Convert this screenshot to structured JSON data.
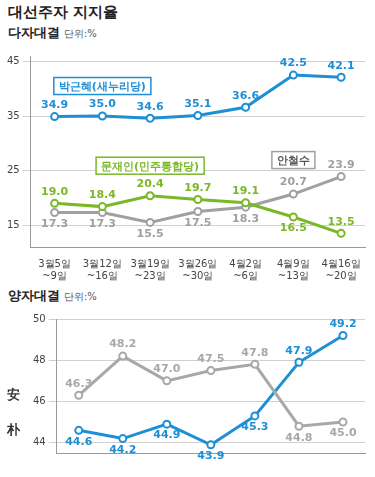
{
  "title": "대선주자 지지율",
  "chart_data": [
    {
      "type": "line",
      "title": "다자대결",
      "subtitle": "단위:%",
      "categories": [
        "3월5일~9일",
        "3월12일~16일",
        "3월19일~23일",
        "3월26일~30일",
        "4월2일~6일",
        "4월9일~13일",
        "4월16일~20일"
      ],
      "series": [
        {
          "name": "박근혜(새누리당)",
          "color": "#1e8fd5",
          "marker": "circle",
          "values": [
            34.9,
            35.0,
            34.6,
            35.1,
            36.6,
            42.5,
            42.1
          ],
          "value_labels": [
            "34.9",
            "35.0",
            "34.6",
            "35.1",
            "36.6",
            "42.5",
            "42.1"
          ]
        },
        {
          "name": "문재인(민주통합당)",
          "color": "#7ab827",
          "marker": "circle",
          "values": [
            19.0,
            18.4,
            20.4,
            19.7,
            19.1,
            16.5,
            13.5
          ],
          "value_labels": [
            "19.0",
            "18.4",
            "20.4",
            "19.7",
            "19.1",
            "16.5",
            "13.5"
          ]
        },
        {
          "name": "안철수",
          "color": "#a0a0a0",
          "marker": "circle",
          "values": [
            17.3,
            17.3,
            15.5,
            17.5,
            18.3,
            20.7,
            23.9
          ],
          "value_labels": [
            "17.3",
            "17.3",
            "15.5",
            "17.5",
            "18.3",
            "20.7",
            "23.9"
          ]
        }
      ],
      "ylim": [
        11,
        46
      ],
      "yticks": [
        15,
        25,
        35,
        45
      ],
      "grid": true,
      "data_labels": true
    },
    {
      "type": "line",
      "title": "양자대결",
      "subtitle": "단위:%",
      "categories": [
        null,
        null,
        null,
        null,
        null,
        null,
        null
      ],
      "series": [
        {
          "name": "安",
          "color": "#a8a8a8",
          "marker": "circle",
          "values": [
            46.3,
            48.2,
            47.0,
            47.5,
            47.8,
            44.8,
            45.0
          ],
          "value_labels": [
            "46.3",
            "48.2",
            "47.0",
            "47.5",
            "47.8",
            "44.8",
            "45.0"
          ]
        },
        {
          "name": "朴",
          "color": "#1e8fd5",
          "marker": "circle",
          "values": [
            44.6,
            44.2,
            44.9,
            43.9,
            45.3,
            47.9,
            49.2
          ],
          "value_labels": [
            "44.6",
            "44.2",
            "44.9",
            "43.9",
            "45.3",
            "47.9",
            "49.2"
          ]
        }
      ],
      "ylim": [
        43.5,
        50
      ],
      "yticks": [
        44,
        46,
        48,
        50
      ],
      "grid": true,
      "data_labels": true,
      "tick_labels": "y"
    }
  ]
}
